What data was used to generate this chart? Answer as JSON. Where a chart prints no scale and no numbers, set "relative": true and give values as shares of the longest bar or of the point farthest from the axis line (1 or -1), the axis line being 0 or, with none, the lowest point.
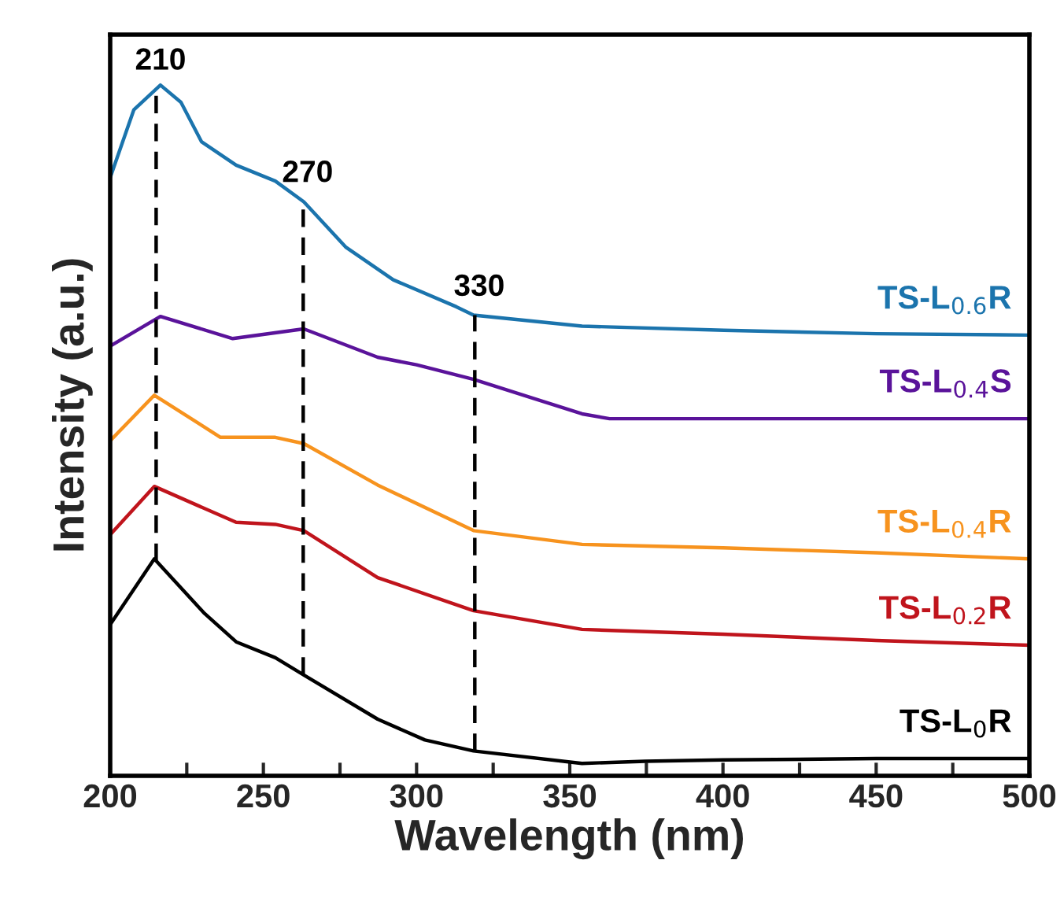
{
  "chart_data": {
    "type": "line",
    "relative": true,
    "xlabel": "Wavelength (nm)",
    "ylabel": "Intensity (a.u.)",
    "xlim": [
      200,
      500
    ],
    "xticks": [
      200,
      {
        "value": 225,
        "label": null
      },
      250,
      {
        "value": 275,
        "label": null
      },
      300,
      {
        "value": 325,
        "label": null
      },
      350,
      {
        "value": 375,
        "label": null
      },
      400,
      {
        "value": 425,
        "label": null
      },
      450,
      {
        "value": 475,
        "label": null
      },
      500
    ],
    "grid": false,
    "legend": false,
    "marker": "none",
    "line_style": "solid",
    "ref_lines": [
      {
        "axis": "x",
        "value": 215,
        "color": "#000000",
        "line_style": "dashed"
      },
      {
        "axis": "x",
        "value": 263,
        "color": "#000000",
        "line_style": "dashed"
      },
      {
        "axis": "x",
        "value": 319,
        "color": "#000000",
        "line_style": "dashed"
      }
    ],
    "annotations": [
      "210",
      "270",
      "330"
    ],
    "series": [
      {
        "name": "TS-L$_{0.6}$R",
        "color": "#1b74ad",
        "x": [
          200,
          207.7,
          216.4,
          223.1,
          229.8,
          241.1,
          253.9,
          263.2,
          277,
          292.4,
          313,
          318.6,
          354,
          400.3,
          450,
          500
        ],
        "values": [
          0.866,
          0.964,
          1.0,
          0.975,
          0.918,
          0.884,
          0.861,
          0.831,
          0.765,
          0.718,
          0.679,
          0.667,
          0.651,
          0.645,
          0.64,
          0.638
        ]
      },
      {
        "name": "TS-L$_{0.4}$S",
        "color": "#5a139a",
        "x": [
          200,
          216.4,
          240,
          263.2,
          287.3,
          300,
          318.6,
          354,
          363,
          400,
          450,
          500
        ],
        "values": [
          0.622,
          0.665,
          0.633,
          0.647,
          0.606,
          0.595,
          0.574,
          0.524,
          0.517,
          0.517,
          0.517,
          0.517
        ]
      },
      {
        "name": "TS-L$_{0.4}$R",
        "color": "#f7931e",
        "x": [
          200,
          214.4,
          236,
          253.9,
          263.2,
          287.3,
          318.6,
          354,
          400,
          450,
          500
        ],
        "values": [
          0.485,
          0.551,
          0.49,
          0.49,
          0.481,
          0.421,
          0.355,
          0.335,
          0.33,
          0.323,
          0.314
        ]
      },
      {
        "name": "TS-L$_{0.2}$R",
        "color": "#c0141c",
        "x": [
          200,
          214.4,
          241.1,
          253.9,
          263.2,
          287.3,
          318.6,
          354,
          400,
          450,
          500
        ],
        "values": [
          0.349,
          0.419,
          0.367,
          0.364,
          0.355,
          0.287,
          0.239,
          0.212,
          0.205,
          0.196,
          0.189
        ]
      },
      {
        "name": "TS-L$_{0}$R",
        "color": "#000000",
        "x": [
          200,
          214.4,
          230.8,
          241.1,
          253.9,
          263.2,
          287.3,
          302.7,
          318.6,
          354,
          374.6,
          400,
          450,
          500
        ],
        "values": [
          0.219,
          0.314,
          0.235,
          0.194,
          0.171,
          0.146,
          0.082,
          0.052,
          0.036,
          0.018,
          0.021,
          0.023,
          0.025,
          0.025
        ]
      }
    ]
  }
}
